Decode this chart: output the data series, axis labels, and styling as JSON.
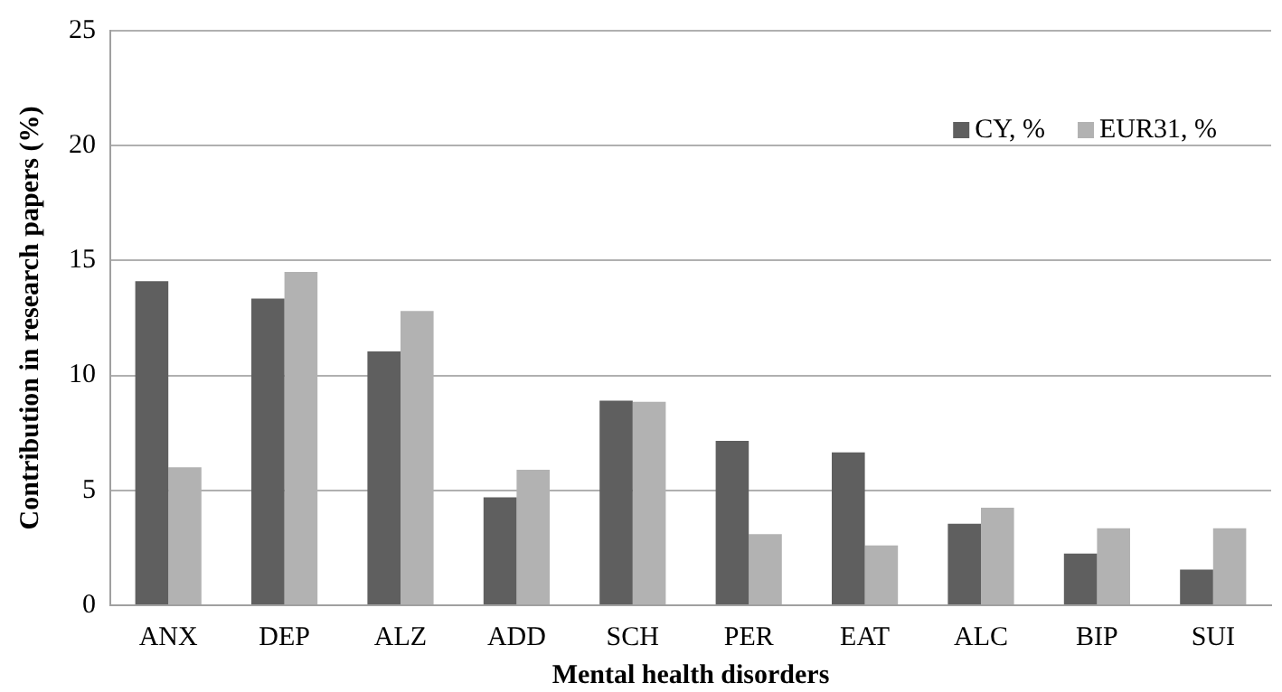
{
  "chart_data": {
    "type": "bar",
    "xlabel": "Mental health disorders",
    "ylabel": "Contribution in research papers (%)",
    "categories": [
      "ANX",
      "DEP",
      "ALZ",
      "ADD",
      "SCH",
      "PER",
      "EAT",
      "ALC",
      "BIP",
      "SUI"
    ],
    "series": [
      {
        "name": "CY, %",
        "color": "#5f5f5f",
        "values": [
          14.1,
          13.35,
          11.05,
          4.7,
          8.9,
          7.15,
          6.65,
          3.55,
          2.25,
          1.55
        ]
      },
      {
        "name": "EUR31, %",
        "color": "#b2b2b2",
        "values": [
          6.0,
          14.5,
          12.8,
          5.9,
          8.85,
          3.1,
          2.6,
          4.25,
          3.35,
          3.35
        ]
      }
    ],
    "ylim": [
      0,
      25
    ],
    "yticks": [
      0,
      5,
      10,
      15,
      20,
      25
    ],
    "grid": "y",
    "legend": "top right"
  }
}
